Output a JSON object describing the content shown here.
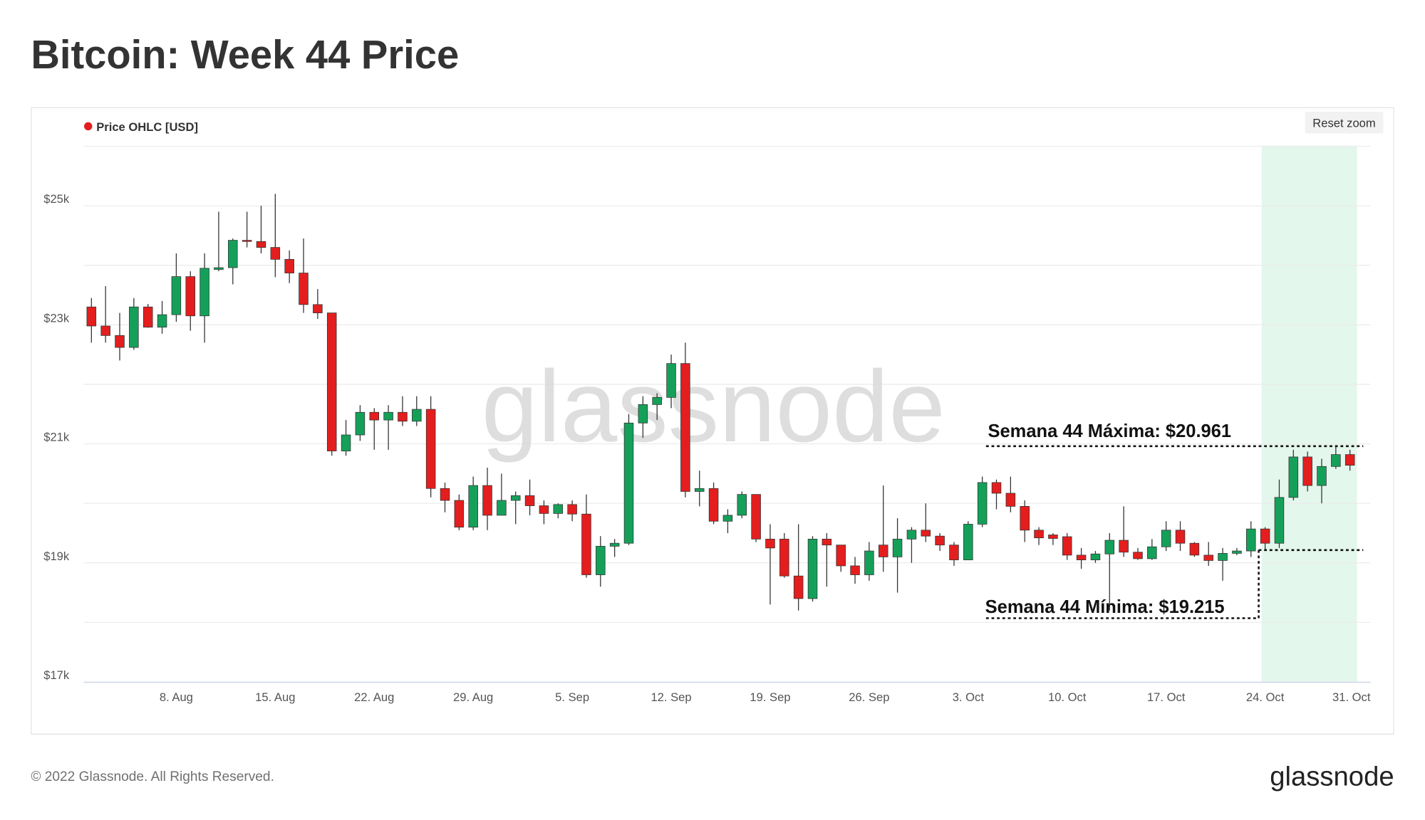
{
  "title": "Bitcoin: Week 44 Price",
  "footer": "© 2022 Glassnode. All Rights Reserved.",
  "logo": "glassnode",
  "reset_button": "Reset zoom",
  "chart_data": {
    "type": "candlestick",
    "watermark": "glassnode",
    "categories": [
      null,
      null,
      null,
      null,
      null,
      null,
      "8. Aug",
      null,
      null,
      null,
      null,
      null,
      null,
      "15. Aug",
      null,
      null,
      null,
      null,
      null,
      null,
      "22. Aug",
      null,
      null,
      null,
      null,
      null,
      null,
      "29. Aug",
      null,
      null,
      null,
      null,
      null,
      null,
      "5. Sep",
      null,
      null,
      null,
      null,
      null,
      null,
      "12. Sep",
      null,
      null,
      null,
      null,
      null,
      null,
      "19. Sep",
      null,
      null,
      null,
      null,
      null,
      null,
      "26. Sep",
      null,
      null,
      null,
      null,
      null,
      null,
      "3. Oct",
      null,
      null,
      null,
      null,
      null,
      null,
      "10. Oct",
      null,
      null,
      null,
      null,
      null,
      null,
      "17. Oct",
      null,
      null,
      null,
      null,
      null,
      null,
      "24. Oct",
      null,
      null,
      null,
      null,
      null,
      null,
      "31. Oct"
    ],
    "series": [
      {
        "name": "Price OHLC [USD]",
        "color": "#e41e1e",
        "up_color": "#15a05a",
        "down_color": "#e41e1e",
        "open": [
          23300,
          22980,
          22820,
          22620,
          23300,
          22960,
          23170,
          23810,
          23150,
          23930,
          23960,
          24420,
          24400,
          24300,
          24100,
          23870,
          23340,
          23200,
          20880,
          21150,
          21530,
          21400,
          21530,
          21380,
          21580,
          20250,
          20050,
          19600,
          20300,
          19800,
          20050,
          20130,
          19960,
          19830,
          19980,
          19820,
          18800,
          19280,
          19330,
          21350,
          21660,
          21780,
          22350,
          20200,
          20250,
          19700,
          19800,
          20150,
          19400,
          19400,
          18780,
          18400,
          19400,
          19300,
          18950,
          18800,
          19300,
          19100,
          19400,
          19550,
          19450,
          19300,
          19050,
          19650,
          20350,
          20170,
          19950,
          19550,
          19470,
          19440,
          19130,
          19050,
          19150,
          19380,
          19180,
          19070,
          19270,
          19550,
          19330,
          19130,
          19040,
          19160,
          19200,
          19570,
          19330,
          20100,
          20780,
          20300,
          20620,
          20820,
          null
        ],
        "high": [
          23450,
          23650,
          23200,
          23450,
          23350,
          23400,
          24200,
          23900,
          24200,
          24900,
          24450,
          24900,
          25000,
          25200,
          24250,
          24450,
          23600,
          23200,
          21400,
          21650,
          21600,
          21650,
          21800,
          21800,
          21800,
          20350,
          20150,
          20450,
          20600,
          20500,
          20200,
          20400,
          20050,
          20000,
          20050,
          20150,
          19450,
          19400,
          21500,
          21800,
          21850,
          22500,
          22700,
          20550,
          20350,
          19900,
          20200,
          20150,
          19650,
          19500,
          19650,
          19450,
          19500,
          19300,
          19100,
          19350,
          20300,
          19750,
          19600,
          20000,
          19500,
          19350,
          19700,
          20450,
          20400,
          20450,
          20050,
          19600,
          19500,
          19500,
          19250,
          19200,
          19500,
          19950,
          19250,
          19400,
          19700,
          19700,
          19350,
          19350,
          19250,
          19250,
          19700,
          19600,
          20400,
          20900,
          20870,
          20750,
          20961,
          20900,
          null
        ],
        "low": [
          22700,
          22700,
          22400,
          22580,
          22950,
          22850,
          23050,
          22900,
          22700,
          23900,
          23680,
          24300,
          24200,
          23800,
          23700,
          23200,
          23100,
          20800,
          20800,
          21050,
          20900,
          20900,
          21300,
          21300,
          20100,
          19850,
          19550,
          19550,
          19550,
          19800,
          19650,
          19800,
          19650,
          19750,
          19700,
          18750,
          18600,
          19100,
          19300,
          21100,
          21400,
          21600,
          20100,
          19950,
          19650,
          19500,
          19750,
          19350,
          18300,
          18750,
          18200,
          18350,
          18600,
          18850,
          18650,
          18700,
          18850,
          18500,
          19000,
          19350,
          19200,
          18950,
          19050,
          19600,
          19900,
          19850,
          19350,
          19300,
          19300,
          19050,
          18900,
          19000,
          18200,
          19100,
          19050,
          19050,
          19200,
          19200,
          19100,
          18950,
          18700,
          19130,
          19100,
          19215,
          19250,
          20050,
          20200,
          20000,
          20580,
          20550,
          null
        ],
        "close": [
          22980,
          22820,
          22620,
          23300,
          22960,
          23170,
          23810,
          23150,
          23950,
          23960,
          24420,
          24400,
          24300,
          24100,
          23870,
          23340,
          23200,
          20880,
          21150,
          21530,
          21400,
          21530,
          21380,
          21580,
          20250,
          20050,
          19600,
          20300,
          19800,
          20050,
          20130,
          19960,
          19830,
          19980,
          19820,
          18800,
          19280,
          19330,
          21350,
          21660,
          21780,
          22350,
          20200,
          20250,
          19700,
          19800,
          20150,
          19400,
          19250,
          18780,
          18400,
          19400,
          19300,
          18950,
          18800,
          19200,
          19100,
          19400,
          19550,
          19450,
          19300,
          19050,
          19650,
          20350,
          20170,
          19950,
          19550,
          19420,
          19410,
          19130,
          19050,
          19150,
          19380,
          19180,
          19070,
          19270,
          19550,
          19330,
          19130,
          19040,
          19160,
          19200,
          19570,
          19330,
          20100,
          20780,
          20300,
          20620,
          20820,
          20640,
          null
        ]
      }
    ],
    "ylim": [
      17000,
      26000
    ],
    "yticks": [
      {
        "value": 17000,
        "label": "$17k"
      },
      {
        "value": 19000,
        "label": "$19k"
      },
      {
        "value": 21000,
        "label": "$21k"
      },
      {
        "value": 23000,
        "label": "$23k"
      },
      {
        "value": 25000,
        "label": "$25k"
      }
    ],
    "minor_yticks": [
      18000,
      20000,
      22000,
      24000,
      26000
    ],
    "grid": true,
    "legend": "top-left",
    "highlight": {
      "start": 83,
      "end": 89,
      "color": "#e3f7ec"
    },
    "annotations": [
      {
        "text": "Semana 44 Máxima: $20.961",
        "value": 20961
      },
      {
        "text": "Semana 44 Mínima: $19.215",
        "value": 19215
      }
    ]
  }
}
